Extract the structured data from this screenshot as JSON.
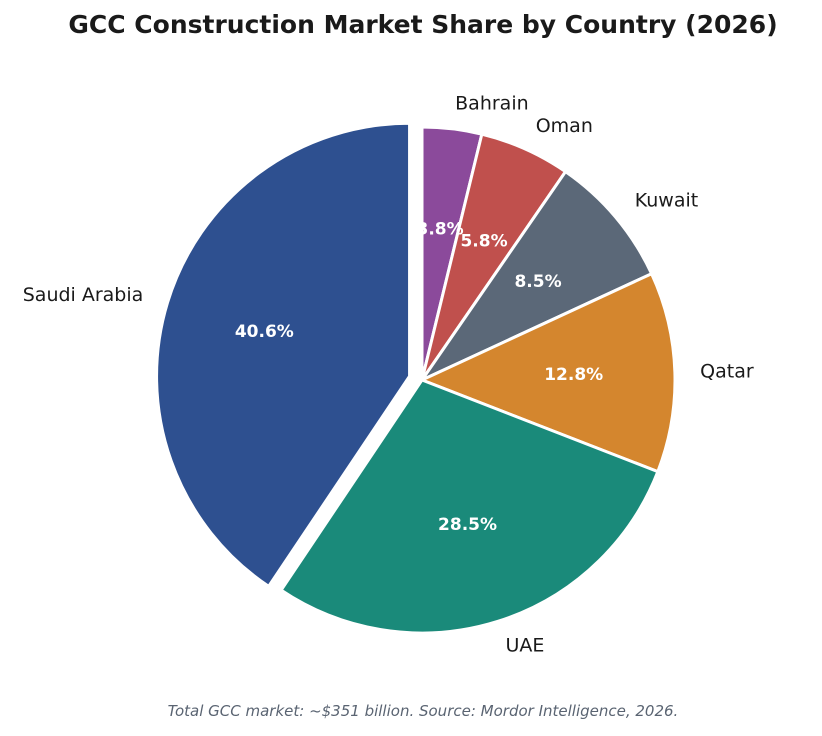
{
  "chart_data": {
    "type": "pie",
    "title": "GCC Construction Market Share by Country (2026)",
    "footnote": "Total GCC market: ~$351 billion. Source: Mordor Intelligence, 2026.",
    "start_angle_deg": 90,
    "direction": "clockwise",
    "categories": [
      "Bahrain",
      "Oman",
      "Kuwait",
      "Qatar",
      "UAE",
      "Saudi Arabia"
    ],
    "values": [
      3.8,
      5.8,
      8.5,
      12.8,
      28.5,
      40.6
    ],
    "value_labels": [
      "3.8%",
      "5.8%",
      "8.5%",
      "12.8%",
      "28.5%",
      "40.6%"
    ],
    "colors": [
      "#8b4a9b",
      "#c0504d",
      "#5b6878",
      "#d4862e",
      "#1a8a7a",
      "#2e5090"
    ],
    "exploded": [
      "Saudi Arabia"
    ]
  }
}
